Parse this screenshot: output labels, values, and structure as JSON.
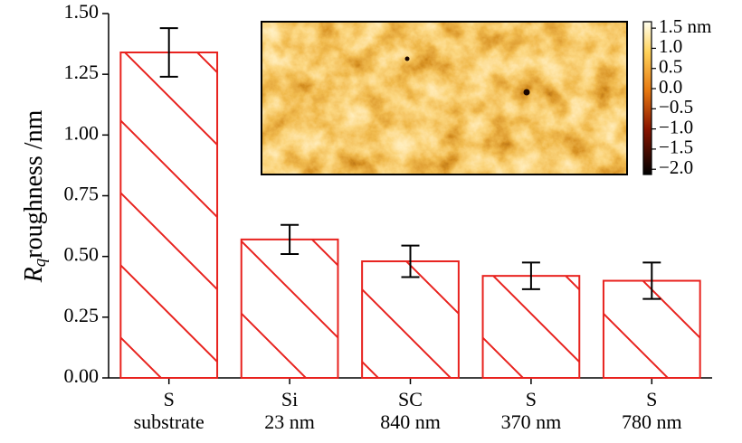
{
  "chart_data": {
    "type": "bar",
    "ylabel": {
      "symbol": "R",
      "subscript": "q",
      "text": "roughness /nm"
    },
    "categories": [
      [
        "S",
        "substrate"
      ],
      [
        "Si",
        "23 nm"
      ],
      [
        "SC",
        "840 nm"
      ],
      [
        "S",
        "370 nm"
      ],
      [
        "S",
        "780 nm"
      ]
    ],
    "values": [
      1.34,
      0.57,
      0.48,
      0.42,
      0.4
    ],
    "errors": [
      0.1,
      0.06,
      0.065,
      0.055,
      0.075
    ],
    "color": "#e8221e",
    "error_color": "#000000",
    "hatch": true,
    "ylim": [
      0,
      1.5
    ],
    "yticks": [
      {
        "value": 0,
        "label": "0.00"
      },
      {
        "value": 0.25,
        "label": "0.25"
      },
      {
        "value": 0.5,
        "label": "0.50"
      },
      {
        "value": 0.75,
        "label": "0.75"
      },
      {
        "value": 1.0,
        "label": "1.00"
      },
      {
        "value": 1.25,
        "label": "1.25"
      },
      {
        "value": 1.5,
        "label": "1.50"
      }
    ],
    "inset": {
      "colorbar_lim": [
        -2.13,
        1.66
      ],
      "colorbar_ticks": [
        {
          "value": 1.5,
          "label": "1.5 nm"
        },
        {
          "value": 1.0,
          "label": "1.0"
        },
        {
          "value": 0.5,
          "label": "0.5"
        },
        {
          "value": 0.0,
          "label": "0.0"
        },
        {
          "value": -0.5,
          "label": "−0.5"
        },
        {
          "value": -1.0,
          "label": "−1.0"
        },
        {
          "value": -1.5,
          "label": "−1.5"
        },
        {
          "value": -2.0,
          "label": "−2.0"
        }
      ]
    }
  }
}
